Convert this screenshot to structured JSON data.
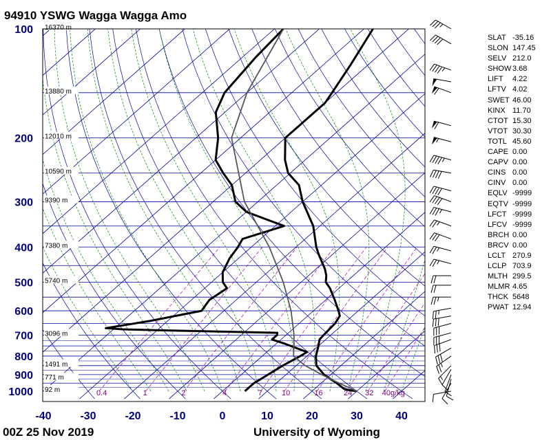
{
  "header": {
    "title": "94910 YSWG Wagga Wagga Amo",
    "footer_left": "00Z 25 Nov 2019",
    "footer_right": "University of Wyoming"
  },
  "colors": {
    "isobar": "#0000a0",
    "isotherm": "#0000a0",
    "dry_adiabat": "#0000a0",
    "moist_adiabat": "#008800",
    "mixing_ratio": "#a000a0",
    "sounding": "#000000",
    "parcel": "#555555"
  },
  "chart_data": {
    "type": "line",
    "x_axis": {
      "ticks": [
        -40,
        -30,
        -20,
        -10,
        0,
        10,
        20,
        30,
        40
      ]
    },
    "y_axis": {
      "scale": "log",
      "ticks": [
        100,
        200,
        300,
        400,
        500,
        600,
        700,
        800,
        900,
        1000
      ]
    },
    "heights": [
      {
        "p": 100,
        "label": "16370 m"
      },
      {
        "p": 150,
        "label": "13880 m"
      },
      {
        "p": 200,
        "label": "12010 m"
      },
      {
        "p": 250,
        "label": "10590 m"
      },
      {
        "p": 300,
        "label": "9390 m"
      },
      {
        "p": 400,
        "label": "7380 m"
      },
      {
        "p": 500,
        "label": "5740 m"
      },
      {
        "p": 700,
        "label": "3096 m"
      },
      {
        "p": 850,
        "label": "1491 m"
      },
      {
        "p": 925,
        "label": "771 m"
      },
      {
        "p": 1000,
        "label": "92 m"
      }
    ],
    "mixing_ratio_labels": [
      "0.4",
      "1",
      "2",
      "4",
      "7",
      "10",
      "16",
      "24",
      "32",
      "40g/kg"
    ],
    "mixing_ratio_values": [
      0.4,
      1,
      2,
      4,
      7,
      10,
      16,
      24,
      32,
      40
    ],
    "series": [
      {
        "points": [
          [
            1000,
            30
          ],
          [
            993,
            28
          ],
          [
            985,
            26.5
          ],
          [
            950,
            23.5
          ],
          [
            925,
            21
          ],
          [
            900,
            18.5
          ],
          [
            850,
            14.5
          ],
          [
            800,
            12
          ],
          [
            750,
            10
          ],
          [
            720,
            8.6
          ],
          [
            700,
            8.4
          ],
          [
            650,
            8
          ],
          [
            620,
            7.2
          ],
          [
            600,
            5.6
          ],
          [
            560,
            2
          ],
          [
            520,
            -2
          ],
          [
            500,
            -4.5
          ],
          [
            480,
            -6
          ],
          [
            460,
            -8
          ],
          [
            420,
            -13
          ],
          [
            400,
            -15.5
          ],
          [
            350,
            -21.5
          ],
          [
            300,
            -30
          ],
          [
            270,
            -35
          ],
          [
            250,
            -40.5
          ],
          [
            230,
            -44.5
          ],
          [
            200,
            -50
          ],
          [
            180,
            -50
          ],
          [
            160,
            -50
          ],
          [
            150,
            -51
          ],
          [
            125,
            -54
          ],
          [
            100,
            -58
          ]
        ]
      },
      {
        "points": [
          [
            1000,
            5
          ],
          [
            993,
            5
          ],
          [
            950,
            5
          ],
          [
            925,
            5.5
          ],
          [
            900,
            6
          ],
          [
            850,
            7
          ],
          [
            800,
            8.5
          ],
          [
            780,
            9
          ],
          [
            740,
            2
          ],
          [
            720,
            -2
          ],
          [
            700,
            -2
          ],
          [
            690,
            -2.5
          ],
          [
            680,
            -27
          ],
          [
            675,
            -38
          ],
          [
            670,
            -42
          ],
          [
            640,
            -34
          ],
          [
            600,
            -25
          ],
          [
            560,
            -26
          ],
          [
            520,
            -25
          ],
          [
            500,
            -27.5
          ],
          [
            470,
            -30
          ],
          [
            430,
            -32
          ],
          [
            400,
            -33
          ],
          [
            380,
            -34
          ],
          [
            350,
            -28
          ],
          [
            320,
            -40
          ],
          [
            300,
            -45
          ],
          [
            270,
            -50
          ],
          [
            250,
            -55
          ],
          [
            230,
            -60
          ],
          [
            200,
            -65
          ],
          [
            170,
            -72
          ],
          [
            150,
            -75
          ],
          [
            120,
            -77
          ],
          [
            100,
            -78
          ]
        ]
      },
      {
        "points": [
          [
            1000,
            30
          ],
          [
            950,
            24
          ],
          [
            900,
            18
          ],
          [
            850,
            12
          ],
          [
            800,
            7
          ],
          [
            750,
            4.5
          ],
          [
            700,
            1.8
          ],
          [
            600,
            -5
          ],
          [
            500,
            -14
          ],
          [
            400,
            -26
          ],
          [
            300,
            -43
          ],
          [
            200,
            -62
          ],
          [
            150,
            -70
          ],
          [
            100,
            -78
          ]
        ]
      }
    ],
    "wind_barbs": [
      {
        "p": 1000,
        "dir": 260,
        "spd": 10
      },
      {
        "p": 950,
        "dir": 210,
        "spd": 10
      },
      {
        "p": 925,
        "dir": 195,
        "spd": 10
      },
      {
        "p": 900,
        "dir": 200,
        "spd": 12
      },
      {
        "p": 870,
        "dir": 210,
        "spd": 14
      },
      {
        "p": 850,
        "dir": 225,
        "spd": 15
      },
      {
        "p": 800,
        "dir": 235,
        "spd": 25
      },
      {
        "p": 760,
        "dir": 240,
        "spd": 30
      },
      {
        "p": 720,
        "dir": 250,
        "spd": 30
      },
      {
        "p": 690,
        "dir": 255,
        "spd": 30
      },
      {
        "p": 650,
        "dir": 255,
        "spd": 30
      },
      {
        "p": 620,
        "dir": 260,
        "spd": 30
      },
      {
        "p": 590,
        "dir": 260,
        "spd": 25
      },
      {
        "p": 550,
        "dir": 270,
        "spd": 25
      },
      {
        "p": 510,
        "dir": 270,
        "spd": 20
      },
      {
        "p": 480,
        "dir": 270,
        "spd": 20
      },
      {
        "p": 445,
        "dir": 285,
        "spd": 25
      },
      {
        "p": 410,
        "dir": 285,
        "spd": 25
      },
      {
        "p": 380,
        "dir": 290,
        "spd": 30
      },
      {
        "p": 350,
        "dir": 290,
        "spd": 25
      },
      {
        "p": 320,
        "dir": 285,
        "spd": 35
      },
      {
        "p": 300,
        "dir": 290,
        "spd": 40
      },
      {
        "p": 280,
        "dir": 285,
        "spd": 40
      },
      {
        "p": 250,
        "dir": 280,
        "spd": 40
      },
      {
        "p": 230,
        "dir": 285,
        "spd": 45
      },
      {
        "p": 205,
        "dir": 285,
        "spd": 55
      },
      {
        "p": 185,
        "dir": 285,
        "spd": 60
      },
      {
        "p": 150,
        "dir": 290,
        "spd": 60
      },
      {
        "p": 140,
        "dir": 280,
        "spd": 50
      },
      {
        "p": 130,
        "dir": 290,
        "spd": 45
      },
      {
        "p": 110,
        "dir": 300,
        "spd": 40
      },
      {
        "p": 100,
        "dir": 300,
        "spd": 35
      }
    ]
  },
  "indices": [
    {
      "name": "SLAT",
      "value": "-35.16"
    },
    {
      "name": "SLON",
      "value": "147.45"
    },
    {
      "name": "SELV",
      "value": "212.0"
    },
    {
      "name": "SHOW",
      "value": "3.68"
    },
    {
      "name": "LIFT",
      "value": "4.22"
    },
    {
      "name": "LFTV",
      "value": "4.02"
    },
    {
      "name": "SWET",
      "value": "46.00"
    },
    {
      "name": "KINX",
      "value": "11.70"
    },
    {
      "name": "CTOT",
      "value": "15.30"
    },
    {
      "name": "VTOT",
      "value": "30.30"
    },
    {
      "name": "TOTL",
      "value": "45.60"
    },
    {
      "name": "CAPE",
      "value": "0.00"
    },
    {
      "name": "CAPV",
      "value": "0.00"
    },
    {
      "name": "CINS",
      "value": "0.00"
    },
    {
      "name": "CINV",
      "value": "0.00"
    },
    {
      "name": "EQLV",
      "value": "-9999"
    },
    {
      "name": "EQTV",
      "value": "-9999"
    },
    {
      "name": "LFCT",
      "value": "-9999"
    },
    {
      "name": "LFCV",
      "value": "-9999"
    },
    {
      "name": "BRCH",
      "value": "0.00"
    },
    {
      "name": "BRCV",
      "value": "0.00"
    },
    {
      "name": "LCLT",
      "value": "270.9"
    },
    {
      "name": "LCLP",
      "value": "703.9"
    },
    {
      "name": "MLTH",
      "value": "299.5"
    },
    {
      "name": "MLMR",
      "value": "4.65"
    },
    {
      "name": "THCK",
      "value": "5648"
    },
    {
      "name": "PWAT",
      "value": "12.94"
    }
  ]
}
